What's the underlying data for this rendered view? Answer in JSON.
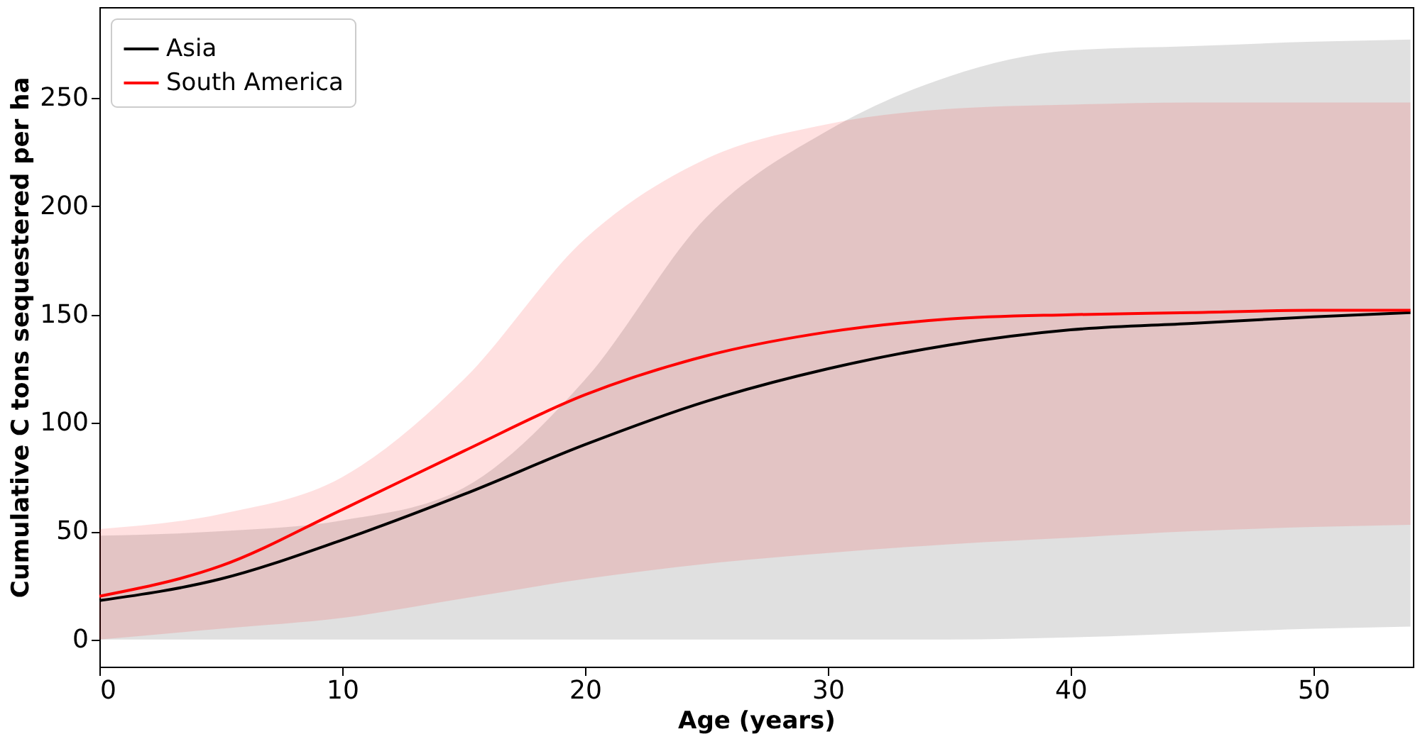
{
  "chart_data": {
    "type": "line",
    "xlabel": "Age (years)",
    "ylabel": "Cumulative C tons sequestered per ha",
    "x": [
      0,
      5,
      10,
      15,
      20,
      25,
      30,
      35,
      40,
      45,
      50,
      54
    ],
    "xlim": [
      0,
      54.1
    ],
    "ylim": [
      -12.5,
      292
    ],
    "xticks": [
      0,
      10,
      20,
      30,
      40,
      50
    ],
    "yticks": [
      0,
      50,
      100,
      150,
      200,
      250
    ],
    "legend": "top left",
    "grid": false,
    "marker": "none",
    "line_style": "solid",
    "series": [
      {
        "name": "Asia",
        "color": "#000000",
        "values": [
          18,
          28,
          46,
          67,
          90,
          110,
          125,
          136,
          143,
          146,
          149,
          151
        ],
        "lower": [
          0,
          0,
          0,
          0,
          0,
          0,
          0,
          0,
          1,
          3,
          5,
          6
        ],
        "upper": [
          48,
          50,
          55,
          70,
          120,
          195,
          235,
          260,
          272,
          274,
          276,
          277
        ]
      },
      {
        "name": "South America",
        "color": "#ff0000",
        "values": [
          20,
          34,
          60,
          87,
          113,
          131,
          142,
          148,
          150,
          151,
          152,
          152
        ],
        "lower": [
          0,
          5,
          10,
          19,
          28,
          35,
          40,
          44,
          47,
          50,
          52,
          53
        ],
        "upper": [
          51,
          58,
          75,
          120,
          185,
          222,
          238,
          245,
          247,
          248,
          248,
          248
        ]
      }
    ]
  }
}
